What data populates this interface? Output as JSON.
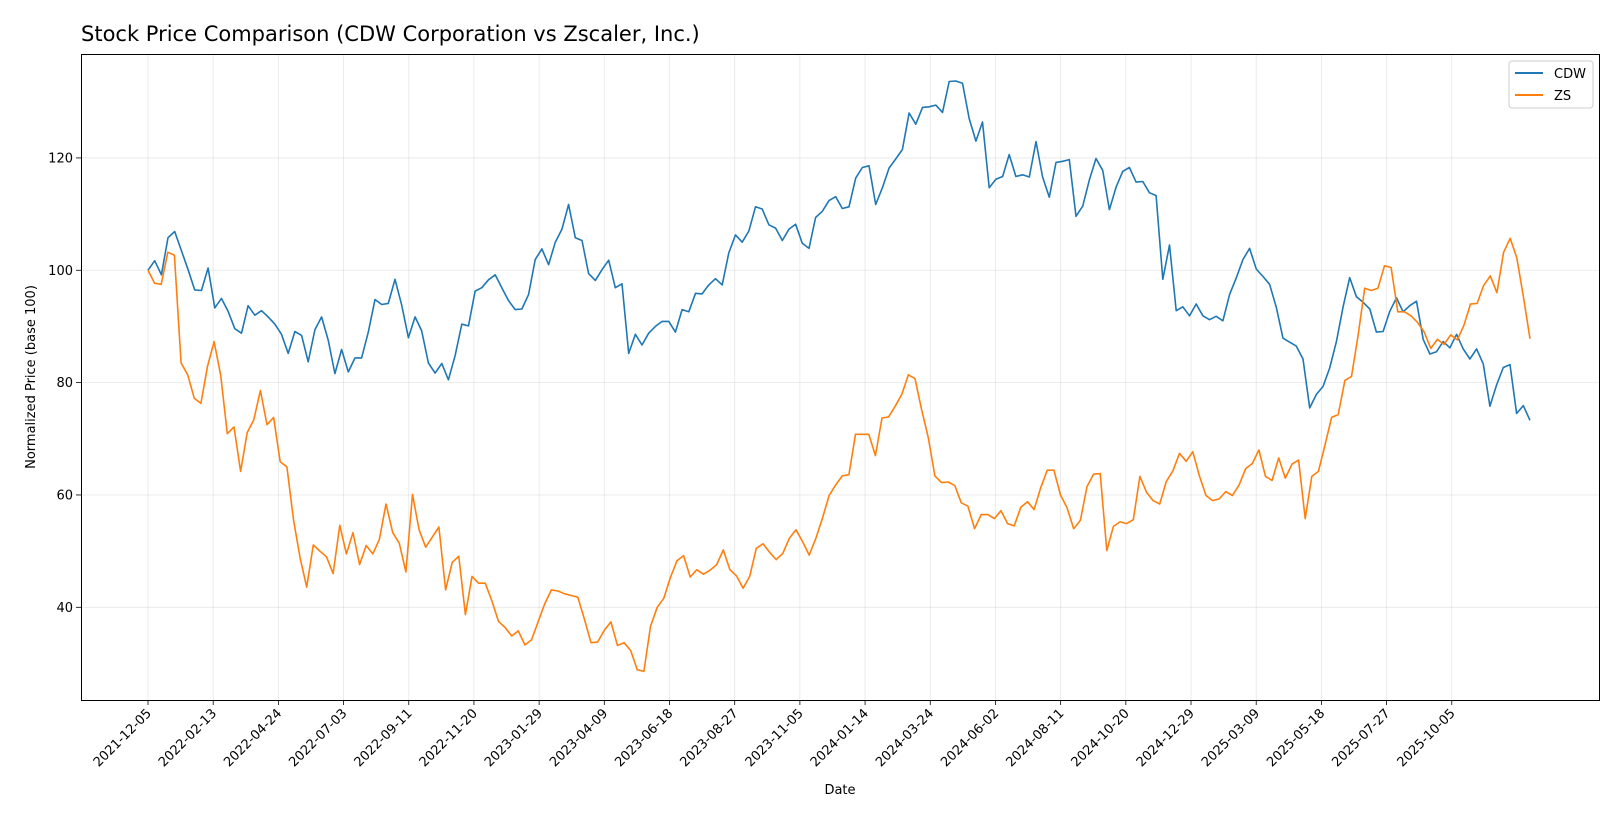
{
  "chart_data": {
    "type": "line",
    "title": "Stock Price Comparison (CDW Corporation vs Zscaler, Inc.)",
    "xlabel": "Date",
    "ylabel": "Normalized Price (base 100)",
    "x_start": "2021-12-05",
    "x_end": "2025-12-28",
    "ylim": [
      23.5,
      138.5
    ],
    "yticks": [
      40,
      60,
      80,
      100,
      120
    ],
    "xticks": [
      "2021-12-05",
      "2022-02-13",
      "2022-04-24",
      "2022-07-03",
      "2022-09-11",
      "2022-11-20",
      "2023-01-29",
      "2023-04-09",
      "2023-06-18",
      "2023-08-27",
      "2023-11-05",
      "2024-01-14",
      "2024-03-24",
      "2024-06-02",
      "2024-08-11",
      "2024-10-20",
      "2024-12-29",
      "2025-03-09",
      "2025-05-18",
      "2025-07-27",
      "2025-10-05"
    ],
    "grid": true,
    "legend_position": "top-right",
    "series": [
      {
        "name": "CDW",
        "color": "#1f77b4",
        "values": [
          100,
          101.7,
          99.2,
          105.8,
          106.9,
          103.5,
          100.1,
          96.5,
          96.4,
          100.4,
          93.3,
          95,
          92.7,
          89.6,
          88.8,
          93.7,
          92,
          92.8,
          91.7,
          90.4,
          88.6,
          85.2,
          89.1,
          88.4,
          83.7,
          89.4,
          91.7,
          87.5,
          81.6,
          85.9,
          81.9,
          84.4,
          84.4,
          89,
          94.8,
          93.9,
          94.1,
          98.4,
          93.8,
          88,
          91.7,
          89.2,
          83.5,
          81.7,
          83.4,
          80.5,
          84.8,
          90.4,
          90.1,
          96.3,
          96.9,
          98.3,
          99.2,
          96.9,
          94.6,
          93,
          93.1,
          95.7,
          101.9,
          103.8,
          101,
          105,
          107.3,
          111.7,
          105.8,
          105.3,
          99.4,
          98.2,
          100.1,
          101.8,
          96.9,
          97.6,
          85.2,
          88.6,
          86.7,
          88.8,
          90,
          90.9,
          90.9,
          89,
          93,
          92.6,
          95.9,
          95.8,
          97.4,
          98.5,
          97.4,
          103.1,
          106.3,
          105,
          107,
          111.3,
          110.9,
          108.1,
          107.5,
          105.3,
          107.3,
          108.2,
          104.8,
          103.9,
          109.4,
          110.5,
          112.4,
          113.1,
          111,
          111.3,
          116.4,
          118.3,
          118.6,
          111.7,
          114.7,
          118.2,
          119.8,
          121.5,
          128,
          126,
          129,
          129.1,
          129.4,
          128.1,
          133.6,
          133.7,
          133.3,
          127,
          123,
          126.4,
          114.7,
          116.2,
          116.7,
          120.6,
          116.7,
          117,
          116.6,
          122.9,
          116.6,
          113,
          119.2,
          119.4,
          119.7,
          109.6,
          111.4,
          116.1,
          119.9,
          117.8,
          110.8,
          114.8,
          117.6,
          118.3,
          115.7,
          115.8,
          113.8,
          113.3,
          98.4,
          104.5,
          92.8,
          93.5,
          91.9,
          94,
          91.9,
          91.2,
          91.8,
          91,
          95.7,
          98.6,
          101.9,
          103.9,
          100.2,
          98.9,
          97.5,
          93.4,
          87.9,
          87.2,
          86.5,
          84.2,
          75.5,
          77.9,
          79.3,
          82.6,
          87.3,
          93.5,
          98.7,
          95.3,
          94.3,
          93.1,
          89,
          89.1,
          92.7,
          95.1,
          92.6,
          93.7,
          94.5,
          87.7,
          85.1,
          85.5,
          87.3,
          86.2,
          88.6,
          86,
          84.2,
          86,
          83.3,
          75.8,
          79.6,
          82.7,
          83.2,
          74.5,
          75.9,
          73.3
        ]
      },
      {
        "name": "ZS",
        "color": "#ff7f0e",
        "values": [
          100,
          97.7,
          97.5,
          103.2,
          102.7,
          83.5,
          81.4,
          77.2,
          76.3,
          82.9,
          87.3,
          81.3,
          70.9,
          72.1,
          64.2,
          71.1,
          73.4,
          78.6,
          72.5,
          73.8,
          65.9,
          65,
          55.6,
          48.8,
          43.6,
          51.1,
          50,
          49,
          46,
          54.6,
          49.5,
          53.3,
          47.6,
          51,
          49.5,
          52.1,
          58.4,
          53.3,
          51.4,
          46.3,
          60.1,
          53.8,
          50.7,
          52.5,
          54.3,
          43.1,
          48,
          49.1,
          38.7,
          45.5,
          44.3,
          44.3,
          41.2,
          37.5,
          36.4,
          34.9,
          35.8,
          33.3,
          34.2,
          37.4,
          40.6,
          43.1,
          42.9,
          42.4,
          42.1,
          41.8,
          37.9,
          33.7,
          33.8,
          35.9,
          37.4,
          33.2,
          33.7,
          32.3,
          28.9,
          28.6,
          36.6,
          40,
          41.6,
          45.3,
          48.3,
          49.2,
          45.4,
          46.7,
          45.9,
          46.6,
          47.6,
          50.2,
          46.7,
          45.6,
          43.4,
          45.5,
          50.5,
          51.3,
          49.8,
          48.5,
          49.6,
          52.3,
          53.8,
          51.7,
          49.3,
          52.3,
          55.9,
          59.9,
          61.8,
          63.4,
          63.6,
          70.8,
          70.8,
          70.8,
          67,
          73.7,
          73.9,
          75.8,
          77.9,
          81.4,
          80.7,
          75.1,
          70.2,
          63.4,
          62.2,
          62.3,
          61.7,
          58.6,
          58,
          54,
          56.5,
          56.5,
          55.8,
          57.2,
          54.9,
          54.5,
          57.8,
          58.8,
          57.4,
          61.3,
          64.4,
          64.4,
          60,
          57.7,
          54,
          55.5,
          61.5,
          63.7,
          63.8,
          50.1,
          54.4,
          55.2,
          54.9,
          55.6,
          63.3,
          60.5,
          59,
          58.4,
          62.4,
          64.3,
          67.4,
          66,
          67.7,
          63.4,
          59.9,
          59,
          59.3,
          60.6,
          59.9,
          61.8,
          64.7,
          65.6,
          68,
          63.3,
          62.6,
          66.6,
          63,
          65.5,
          66.2,
          55.8,
          63.3,
          64.2,
          68.9,
          73.8,
          74.3,
          80.4,
          81.1,
          88.4,
          96.8,
          96.4,
          96.8,
          100.8,
          100.5,
          92.6,
          92.6,
          91.9,
          90.7,
          89,
          86.1,
          87.7,
          86.8,
          88.5,
          87.6,
          90.2,
          94,
          94.1,
          97.3,
          99,
          96,
          103.2,
          105.7,
          102.2,
          95.3,
          87.8
        ]
      }
    ]
  }
}
